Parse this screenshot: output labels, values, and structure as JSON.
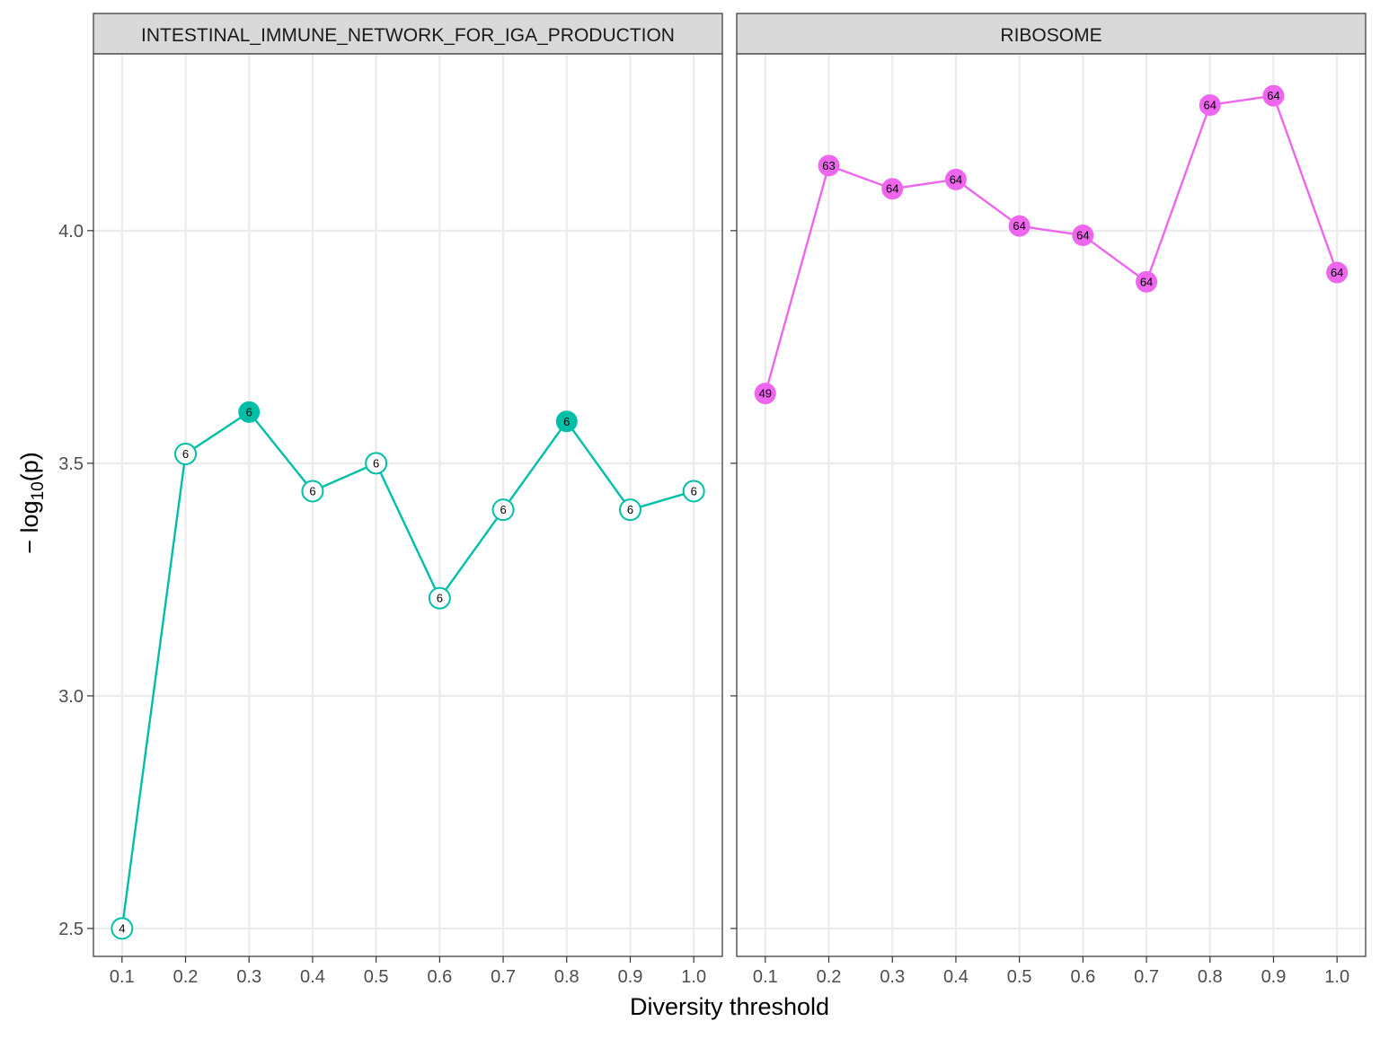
{
  "chart_data": {
    "type": "line",
    "xlabel": "Diversity threshold",
    "ylabel": {
      "prefix": "− log",
      "subscript": "10",
      "suffix": "(p)"
    },
    "ylim": [
      2.44,
      4.38
    ],
    "yticks": [
      2.5,
      3.0,
      3.5,
      4.0
    ],
    "ytick_labels": [
      "2.5",
      "3.0",
      "3.5",
      "4.0"
    ],
    "xticks": [
      0.1,
      0.2,
      0.3,
      0.4,
      0.5,
      0.6,
      0.7,
      0.8,
      0.9,
      1.0
    ],
    "xtick_labels": [
      "0.1",
      "0.2",
      "0.3",
      "0.4",
      "0.5",
      "0.6",
      "0.7",
      "0.8",
      "0.9",
      "1.0"
    ],
    "xlim": [
      0.055,
      1.045
    ],
    "grid": true,
    "panels": [
      {
        "title": "INTESTINAL_IMMUNE_NETWORK_FOR_IGA_PRODUCTION",
        "color": "#00BFA8",
        "x": [
          0.1,
          0.2,
          0.3,
          0.4,
          0.5,
          0.6,
          0.7,
          0.8,
          0.9,
          1.0
        ],
        "y": [
          2.5,
          3.52,
          3.61,
          3.44,
          3.5,
          3.21,
          3.4,
          3.59,
          3.4,
          3.44
        ],
        "labels": [
          "4",
          "6",
          "6",
          "6",
          "6",
          "6",
          "6",
          "6",
          "6",
          "6"
        ],
        "filled": [
          false,
          false,
          true,
          false,
          false,
          false,
          false,
          true,
          false,
          false
        ]
      },
      {
        "title": "RIBOSOME",
        "color": "#EE66EE",
        "x": [
          0.1,
          0.2,
          0.3,
          0.4,
          0.5,
          0.6,
          0.7,
          0.8,
          0.9,
          1.0
        ],
        "y": [
          3.65,
          4.14,
          4.09,
          4.11,
          4.01,
          3.99,
          3.89,
          4.27,
          4.29,
          3.91
        ],
        "labels": [
          "49",
          "63",
          "64",
          "64",
          "64",
          "64",
          "64",
          "64",
          "64",
          "64"
        ],
        "filled": [
          true,
          true,
          true,
          true,
          true,
          true,
          true,
          true,
          true,
          true
        ]
      }
    ]
  }
}
